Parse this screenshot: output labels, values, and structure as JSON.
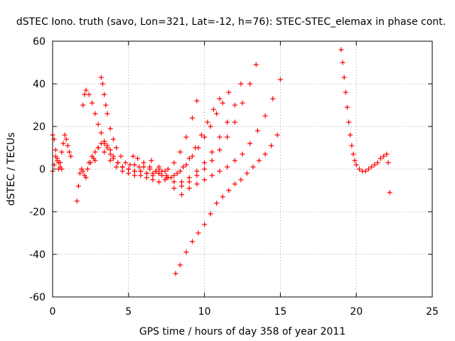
{
  "chart_data": {
    "type": "scatter",
    "title": "dSTEC Iono. truth (savo, Lon=321, Lat=-12, h=76): STEC-STEC_elemax in phase cont.",
    "xlabel": "GPS time / hours of day 358 of year 2011",
    "ylabel": "dSTEC  / TECUs",
    "xlim": [
      0,
      25
    ],
    "ylim": [
      -60,
      60
    ],
    "xticks": [
      0,
      5,
      10,
      15,
      20,
      25
    ],
    "yticks": [
      -60,
      -40,
      -20,
      0,
      20,
      40,
      60
    ],
    "xtick_labels": [
      "0",
      "5",
      "10",
      "15",
      "20",
      "25"
    ],
    "ytick_labels": [
      "-60",
      "-40",
      "-20",
      "0",
      "20",
      "40",
      "60"
    ],
    "grid": true,
    "marker": "plus",
    "color": "#ff0000",
    "series": [
      {
        "x": [
          0.0,
          0.1,
          0.2,
          0.3,
          0.4,
          0.5,
          0.6
        ],
        "y": [
          16,
          14,
          9,
          5,
          3,
          1,
          0
        ]
      },
      {
        "x": [
          0.0,
          0.1,
          0.2,
          0.3
        ],
        "y": [
          -1,
          2,
          6,
          4
        ]
      },
      {
        "x": [
          0.4,
          0.5,
          0.6,
          0.7,
          0.8,
          0.9,
          1.0,
          1.1,
          1.2
        ],
        "y": [
          0,
          3,
          8,
          12,
          16,
          14,
          11,
          8,
          6
        ]
      },
      {
        "x": [
          1.6,
          1.7,
          1.8,
          1.9,
          2.0,
          2.1,
          2.2,
          2.3,
          2.5,
          2.7,
          2.8
        ],
        "y": [
          -15,
          -8,
          -2,
          0,
          -1,
          -3,
          -4,
          0,
          3,
          5,
          4
        ]
      },
      {
        "x": [
          2.0,
          2.1,
          2.2,
          2.4,
          2.6,
          2.8,
          3.0,
          3.2,
          3.4,
          3.6,
          3.8,
          4.0,
          4.3,
          4.6,
          5.0,
          5.4,
          5.8,
          6.2,
          6.6,
          7.0
        ],
        "y": [
          30,
          35,
          37,
          35,
          31,
          26,
          21,
          17,
          13,
          10,
          7,
          5,
          3,
          1,
          0,
          -1,
          -1,
          -2,
          -2,
          -2
        ]
      },
      {
        "x": [
          2.4,
          2.6,
          2.8,
          3.0,
          3.2,
          3.4,
          3.6,
          3.8,
          4.0,
          4.3,
          4.6,
          5.0,
          5.4,
          5.8,
          6.2,
          6.6,
          7.0,
          7.4
        ],
        "y": [
          3,
          6,
          8,
          10,
          12,
          12,
          11,
          9,
          6,
          3,
          1,
          0,
          -1,
          -1,
          -2,
          -3,
          -2,
          -1
        ]
      },
      {
        "x": [
          3.2,
          3.3,
          3.4,
          3.5,
          3.6,
          3.8,
          4.0,
          4.2,
          4.5,
          4.8,
          5.1,
          5.4,
          5.7,
          6.0,
          6.4,
          6.8,
          7.2,
          7.6,
          8.0,
          8.4,
          8.8,
          9.2,
          9.5
        ],
        "y": [
          43,
          40,
          35,
          30,
          26,
          19,
          14,
          10,
          6,
          3,
          2,
          2,
          1,
          1,
          0,
          -1,
          -1,
          0,
          3,
          8,
          15,
          24,
          32
        ]
      },
      {
        "x": [
          3.0,
          3.4,
          3.8,
          4.2,
          4.6,
          5.0,
          5.4,
          5.8,
          6.2,
          6.6,
          7.0,
          7.4,
          7.8,
          8.2,
          8.6,
          9.0,
          9.4,
          9.8,
          10.2,
          10.6,
          11.0
        ],
        "y": [
          10,
          8,
          4,
          1,
          -1,
          -2,
          -3,
          -3,
          -4,
          -5,
          -6,
          -5,
          -4,
          -2,
          1,
          5,
          10,
          16,
          22,
          28,
          33
        ]
      },
      {
        "x": [
          5.3,
          5.6,
          6.0,
          6.4,
          6.8,
          7.2,
          7.6,
          8.0,
          8.4,
          8.8,
          9.2,
          9.6,
          10.0,
          10.4,
          10.8,
          11.2,
          11.6
        ],
        "y": [
          6,
          5,
          3,
          1,
          -1,
          -3,
          -4,
          -3,
          -1,
          2,
          6,
          10,
          15,
          20,
          26,
          31,
          36
        ]
      },
      {
        "x": [
          6.5,
          7.0,
          7.5,
          8.0,
          8.5,
          9.0,
          9.5,
          10.0,
          10.5,
          11.0,
          11.5,
          12.0,
          12.4
        ],
        "y": [
          4,
          1,
          -3,
          -6,
          -6,
          -4,
          -1,
          3,
          8,
          15,
          22,
          30,
          40
        ]
      },
      {
        "x": [
          7.0,
          7.5,
          8.0,
          8.5,
          9.0,
          9.5,
          10.0,
          10.5,
          11.0,
          11.5,
          12.0,
          12.5,
          13.0,
          13.4
        ],
        "y": [
          0,
          -4,
          -9,
          -8,
          -6,
          -3,
          0,
          4,
          9,
          15,
          22,
          31,
          40,
          49
        ]
      },
      {
        "x": [
          8.5,
          9.0,
          9.5,
          10.0,
          10.5,
          11.0,
          11.5,
          12.0,
          12.5,
          13.0,
          13.5,
          14.0,
          14.5,
          15.0
        ],
        "y": [
          -12,
          -9,
          -7,
          -5,
          -3,
          -1,
          1,
          4,
          7,
          12,
          18,
          25,
          33,
          42
        ]
      },
      {
        "x": [
          8.1,
          8.4,
          8.8,
          9.2,
          9.6,
          10.0,
          10.4,
          10.8,
          11.2,
          11.6,
          12.0,
          12.4,
          12.8,
          13.2,
          13.6,
          14.0,
          14.4,
          14.8
        ],
        "y": [
          -49,
          -45,
          -39,
          -34,
          -30,
          -26,
          -21,
          -16,
          -13,
          -10,
          -7,
          -5,
          -2,
          1,
          4,
          7,
          11,
          16
        ]
      },
      {
        "x": [
          19.0,
          19.1,
          19.2,
          19.3,
          19.4,
          19.5,
          19.6,
          19.7,
          19.8,
          19.9,
          20.0,
          20.2,
          20.4,
          20.6,
          20.8,
          21.0,
          21.2,
          21.4,
          21.6,
          21.8,
          22.0,
          22.1,
          22.2
        ],
        "y": [
          56,
          50,
          43,
          36,
          29,
          22,
          16,
          11,
          7,
          4,
          2,
          0,
          -1,
          -1,
          0,
          1,
          2,
          3,
          5,
          6,
          7,
          3,
          -11
        ]
      }
    ]
  }
}
